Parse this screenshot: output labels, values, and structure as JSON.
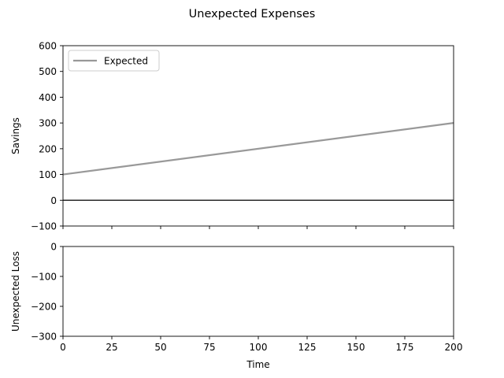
{
  "chart_data": {
    "title": "Unexpected Expenses",
    "x_label": "Time",
    "x_ticks": [
      0,
      25,
      50,
      75,
      100,
      125,
      150,
      175,
      200
    ],
    "x_range": [
      0,
      200
    ],
    "panels": [
      {
        "id": "savings",
        "type": "line",
        "ylabel": "Savings",
        "ylim": [
          -100,
          600
        ],
        "y_ticks": [
          -100,
          0,
          100,
          200,
          300,
          400,
          500,
          600
        ],
        "grid": false,
        "legend": {
          "placement": "upper-left",
          "entries": [
            "Expected"
          ]
        },
        "series": [
          {
            "name": "Expected",
            "color": "#999999",
            "x": [
              0,
              200
            ],
            "y": [
              100,
              300
            ]
          }
        ],
        "reference_line": {
          "y": 0,
          "color": "#000000"
        }
      },
      {
        "id": "unexpected-loss",
        "type": "line",
        "ylabel": "Unexpected Loss",
        "ylim": [
          -300,
          0
        ],
        "y_ticks": [
          -300,
          -200,
          -100,
          0
        ],
        "grid": false,
        "series": []
      }
    ]
  }
}
